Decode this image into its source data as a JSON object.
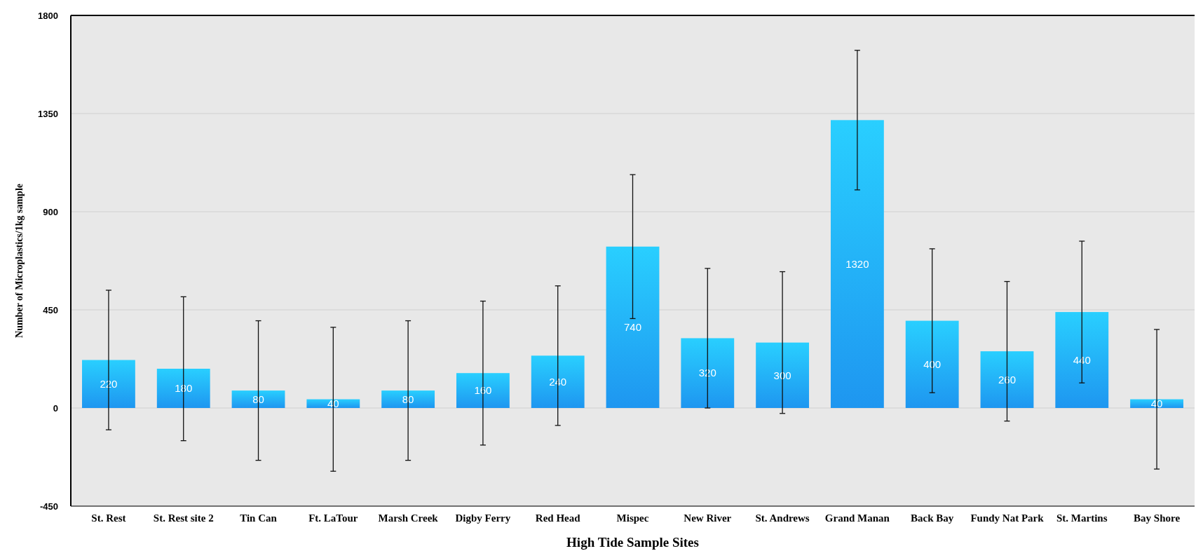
{
  "chart_data": {
    "type": "bar",
    "xlabel": "High Tide Sample Sites",
    "ylabel": "Number of Microplastics/1kg sample",
    "categories": [
      "St. Rest",
      "St. Rest site 2",
      "Tin Can",
      "Ft. LaTour",
      "Marsh Creek",
      "Digby Ferry",
      "Red Head",
      "Mispec",
      "New River",
      "St. Andrews",
      "Grand Manan",
      "Back Bay",
      "Fundy Nat Park",
      "St. Martins",
      "Bay Shore"
    ],
    "values": [
      220,
      180,
      80,
      40,
      80,
      160,
      240,
      740,
      320,
      300,
      1320,
      400,
      260,
      440,
      40
    ],
    "errors": [
      320,
      330,
      320,
      330,
      320,
      330,
      320,
      330,
      320,
      325,
      320,
      330,
      320,
      325,
      320
    ],
    "color": "#1e96f0",
    "data_labels": true,
    "grid": "y",
    "ylim": [
      -450,
      1800
    ],
    "yticks": [
      -450,
      0,
      450,
      900,
      1350,
      1800
    ]
  }
}
